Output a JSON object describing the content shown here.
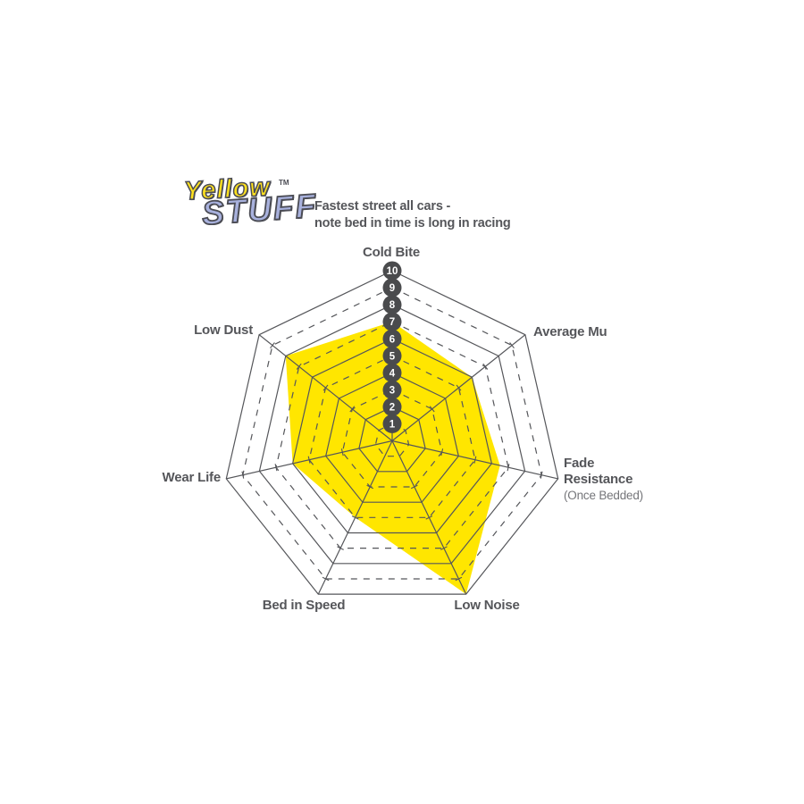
{
  "logo": {
    "word1": "Yellow",
    "tm": "TM",
    "word2": "STUFF"
  },
  "subtitle": {
    "line1": "Fastest street all cars -",
    "line2": "note bed in time is long in racing"
  },
  "axis_labels": {
    "cold_bite": "Cold Bite",
    "average_mu": "Average Mu",
    "fade_line1": "Fade",
    "fade_line2": "Resistance",
    "fade_line3": "(Once Bedded)",
    "low_noise": "Low Noise",
    "bed_in_speed": "Bed in Speed",
    "wear_life": "Wear Life",
    "low_dust": "Low Dust"
  },
  "chart_data": {
    "type": "radar",
    "title": "Yellowstuff brake pad performance",
    "axes": [
      "Cold Bite",
      "Average Mu",
      "Fade Resistance (Once Bedded)",
      "Low Noise",
      "Bed in Speed",
      "Wear Life",
      "Low Dust"
    ],
    "series": [
      {
        "name": "Yellowstuff",
        "values": [
          7,
          6,
          6.5,
          10,
          5,
          6,
          8
        ]
      }
    ],
    "scale_min": 0,
    "scale_max": 10,
    "scale_ticks": [
      1,
      2,
      3,
      4,
      5,
      6,
      7,
      8,
      9,
      10
    ],
    "grid": {
      "rings": 10,
      "even_rings": "solid",
      "odd_rings": "dashed",
      "shape": "heptagon"
    },
    "legend": "none",
    "colors": {
      "series_fill": "#FFE600",
      "grid_line": "#55565A",
      "badge_fill": "#4A4B4D",
      "badge_text": "#FFFFFF"
    }
  }
}
